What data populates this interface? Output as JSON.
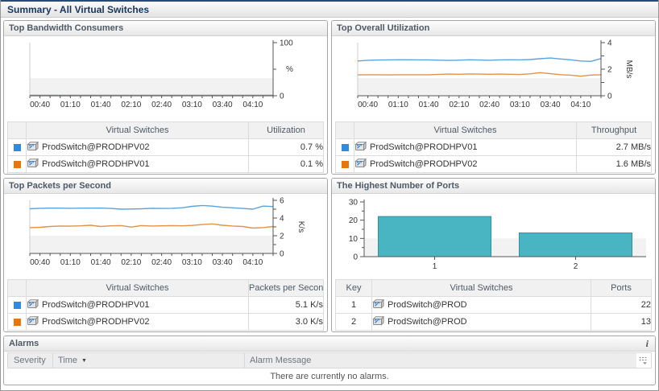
{
  "page": {
    "title": "Summary - All Virtual Switches"
  },
  "colors": {
    "legend_blue": "#2f8be0",
    "legend_orange": "#e5770e",
    "line_blue": "#5ba3dc",
    "line_orange": "#e2924a",
    "bar_fill": "#4ab5c2",
    "bar_border": "#2f929f"
  },
  "panels": {
    "bandwidth": {
      "title": "Top Bandwidth Consumers",
      "table": {
        "col_name": "Virtual Switches",
        "col_value": "Utilization",
        "rows": [
          {
            "color": "#2f8be0",
            "name": "ProdSwitch@PRODHPV02",
            "value": "0.7 %"
          },
          {
            "color": "#e5770e",
            "name": "ProdSwitch@PRODHPV01",
            "value": "0.1 %"
          }
        ]
      }
    },
    "overall": {
      "title": "Top Overall Utilization",
      "table": {
        "col_name": "Virtual Switches",
        "col_value": "Throughput",
        "rows": [
          {
            "color": "#2f8be0",
            "name": "ProdSwitch@PRODHPV01",
            "value": "2.7 MB/s"
          },
          {
            "color": "#e5770e",
            "name": "ProdSwitch@PRODHPV02",
            "value": "1.6 MB/s"
          }
        ]
      }
    },
    "packets": {
      "title": "Top Packets per Second",
      "table": {
        "col_name": "Virtual Switches",
        "col_value": "Packets per Second",
        "rows": [
          {
            "color": "#2f8be0",
            "name": "ProdSwitch@PRODHPV01",
            "value": "5.1 K/s"
          },
          {
            "color": "#e5770e",
            "name": "ProdSwitch@PRODHPV02",
            "value": "3.0 K/s"
          }
        ]
      }
    },
    "ports": {
      "title": "The Highest Number of Ports",
      "table": {
        "col_key": "Key",
        "col_name": "Virtual Switches",
        "col_value": "Ports",
        "rows": [
          {
            "key": "1",
            "name": "ProdSwitch@PROD",
            "value": "22"
          },
          {
            "key": "2",
            "name": "ProdSwitch@PROD",
            "value": "13"
          }
        ]
      }
    },
    "alarms": {
      "title": "Alarms",
      "info_icon": "i",
      "col_severity": "Severity",
      "col_time": "Time",
      "col_message": "Alarm Message",
      "empty_message": "There are currently no alarms."
    }
  },
  "chart_data": [
    {
      "id": "bandwidth",
      "type": "line",
      "title": "Top Bandwidth Consumers",
      "ylabel": "%",
      "unit": "%",
      "unit_rotated": false,
      "ylim": [
        0,
        100
      ],
      "yticks": [
        0,
        100
      ],
      "yminors": [
        50
      ],
      "x_labels": [
        "00:40",
        "01:10",
        "01:40",
        "02:10",
        "02:40",
        "03:10",
        "03:40",
        "04:10"
      ],
      "x_label_indices": [
        1,
        4,
        7,
        10,
        13,
        16,
        19,
        22
      ],
      "series": [
        {
          "name": "ProdSwitch@PRODHPV02",
          "color": "#5ba3dc",
          "values": [
            0.7,
            0.7,
            0.7,
            0.7,
            0.7,
            0.7,
            0.7,
            0.7,
            0.7,
            0.7,
            0.7,
            0.7,
            0.7,
            0.7,
            0.7,
            0.7,
            0.7,
            0.7,
            0.7,
            0.7,
            0.7,
            0.7,
            0.7,
            0.7,
            0.7
          ]
        },
        {
          "name": "ProdSwitch@PRODHPV01",
          "color": "#e2924a",
          "values": [
            0.15,
            0.15,
            0.15,
            0.15,
            0.15,
            0.15,
            0.15,
            0.15,
            0.15,
            0.15,
            0.15,
            0.15,
            0.15,
            0.15,
            0.15,
            0.15,
            0.15,
            0.15,
            0.15,
            0.15,
            0.15,
            0.15,
            0.15,
            0.15,
            0.15
          ]
        }
      ]
    },
    {
      "id": "overall",
      "type": "line",
      "title": "Top Overall Utilization",
      "ylabel": "MB/s",
      "unit": "MB/s",
      "unit_rotated": true,
      "ylim": [
        0,
        4
      ],
      "yticks": [
        0,
        2,
        4
      ],
      "yminors": [
        1,
        3
      ],
      "x_labels": [
        "00:40",
        "01:10",
        "01:40",
        "02:10",
        "02:40",
        "03:10",
        "03:40",
        "04:10"
      ],
      "x_label_indices": [
        1,
        4,
        7,
        10,
        13,
        16,
        19,
        22
      ],
      "series": [
        {
          "name": "ProdSwitch@PRODHPV01",
          "color": "#5ba3dc",
          "values": [
            2.62,
            2.67,
            2.69,
            2.7,
            2.71,
            2.71,
            2.7,
            2.7,
            2.68,
            2.66,
            2.68,
            2.71,
            2.69,
            2.67,
            2.7,
            2.71,
            2.7,
            2.73,
            2.79,
            2.84,
            2.77,
            2.71,
            2.62,
            2.59,
            2.8
          ]
        },
        {
          "name": "ProdSwitch@PRODHPV02",
          "color": "#e2924a",
          "values": [
            1.57,
            1.58,
            1.58,
            1.57,
            1.58,
            1.58,
            1.58,
            1.58,
            1.61,
            1.63,
            1.62,
            1.64,
            1.63,
            1.62,
            1.63,
            1.62,
            1.6,
            1.65,
            1.74,
            1.66,
            1.59,
            1.55,
            1.47,
            1.56,
            1.58
          ]
        }
      ]
    },
    {
      "id": "packets",
      "type": "line",
      "title": "Top Packets per Second",
      "ylabel": "K/s",
      "unit": "K/s",
      "unit_rotated": true,
      "ylim": [
        0,
        6
      ],
      "yticks": [
        0,
        2,
        4,
        6
      ],
      "yminors": [
        1,
        3,
        5
      ],
      "x_labels": [
        "00:40",
        "01:10",
        "01:40",
        "02:10",
        "02:40",
        "03:10",
        "03:40",
        "04:10"
      ],
      "x_label_indices": [
        1,
        4,
        7,
        10,
        13,
        16,
        19,
        22
      ],
      "series": [
        {
          "name": "ProdSwitch@PRODHPV01",
          "color": "#5ba3dc",
          "values": [
            5.05,
            5.1,
            5.12,
            5.12,
            5.1,
            5.12,
            5.12,
            5.13,
            5.08,
            5.0,
            5.02,
            5.05,
            5.1,
            5.08,
            5.1,
            5.15,
            5.32,
            5.42,
            5.35,
            5.22,
            5.15,
            5.08,
            5.0,
            5.35,
            5.3
          ]
        },
        {
          "name": "ProdSwitch@PRODHPV02",
          "color": "#e2924a",
          "values": [
            2.92,
            2.95,
            3.05,
            3.1,
            3.08,
            3.12,
            3.18,
            3.05,
            3.12,
            3.15,
            2.98,
            3.15,
            3.1,
            3.12,
            3.15,
            3.12,
            3.16,
            3.26,
            3.34,
            3.18,
            3.1,
            3.05,
            2.86,
            2.92,
            3.05
          ]
        }
      ]
    },
    {
      "id": "ports",
      "type": "bar",
      "title": "The Highest Number of Ports",
      "categories": [
        "1",
        "2"
      ],
      "values": [
        22,
        13
      ],
      "ylim": [
        0,
        30
      ],
      "yticks": [
        0,
        10,
        20,
        30
      ],
      "yminors": [
        5,
        15,
        25
      ],
      "bar_color": "#4ab5c2",
      "bar_border": "#2f929f"
    }
  ]
}
